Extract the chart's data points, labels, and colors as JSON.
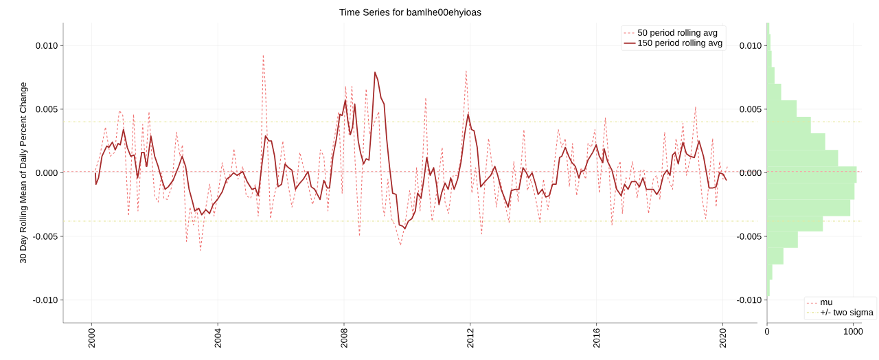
{
  "chart_data": [
    {
      "type": "line",
      "title": "Time Series for bamlhe00ehyioas",
      "ylabel": "30 Day Rolling Mean of Daily Percent Change",
      "xlim": [
        1999.1,
        2021.1
      ],
      "ylim": [
        -0.0118,
        0.0118
      ],
      "xticks": [
        2000,
        2004,
        2008,
        2012,
        2016,
        2020
      ],
      "yticks": [
        {
          "value": -0.01,
          "label": "-0.010"
        },
        {
          "value": -0.005,
          "label": "-0.005"
        },
        {
          "value": 0,
          "label": "0.000"
        },
        {
          "value": 0.005,
          "label": "0.005"
        },
        {
          "value": 0.01,
          "label": "0.010"
        }
      ],
      "grid": true,
      "legend": "top right",
      "series": [
        {
          "name": "50 period rolling avg",
          "color": "#f07070",
          "line_style": "dashed",
          "x": [
            2000.12,
            2000.26,
            2000.44,
            2000.59,
            2000.73,
            2000.88,
            2000.99,
            2001.06,
            2001.17,
            2001.24,
            2001.33,
            2001.4,
            2001.47,
            2001.53,
            2001.62,
            2001.71,
            2001.82,
            2001.93,
            2002.0,
            2002.11,
            2002.22,
            2002.29,
            2002.4,
            2002.54,
            2002.69,
            2002.8,
            2002.88,
            2003.01,
            2003.12,
            2003.23,
            2003.34,
            2003.45,
            2003.59,
            2003.74,
            2003.88,
            2004.03,
            2004.14,
            2004.28,
            2004.43,
            2004.51,
            2004.64,
            2004.79,
            2004.9,
            2005.04,
            2005.19,
            2005.28,
            2005.36,
            2005.44,
            2005.51,
            2005.59,
            2005.67,
            2005.77,
            2005.91,
            2006.06,
            2006.2,
            2006.35,
            2006.49,
            2006.6,
            2006.71,
            2006.86,
            2007.0,
            2007.15,
            2007.25,
            2007.36,
            2007.49,
            2007.6,
            2007.72,
            2007.83,
            2007.94,
            2008.05,
            2008.16,
            2008.25,
            2008.35,
            2008.49,
            2008.59,
            2008.7,
            2008.81,
            2008.99,
            2009.1,
            2009.21,
            2009.28,
            2009.39,
            2009.5,
            2009.61,
            2009.79,
            2009.93,
            2010.08,
            2010.19,
            2010.3,
            2010.41,
            2010.59,
            2010.67,
            2010.79,
            2010.89,
            2010.99,
            2011.11,
            2011.2,
            2011.31,
            2011.46,
            2011.6,
            2011.71,
            2011.87,
            2011.98,
            2012.05,
            2012.17,
            2012.25,
            2012.36,
            2012.47,
            2012.58,
            2012.7,
            2012.83,
            2012.94,
            2013.09,
            2013.23,
            2013.38,
            2013.52,
            2013.7,
            2013.81,
            2013.92,
            2014.07,
            2014.21,
            2014.32,
            2014.46,
            2014.61,
            2014.79,
            2014.9,
            2015.01,
            2015.14,
            2015.24,
            2015.37,
            2015.51,
            2015.66,
            2015.73,
            2015.84,
            2015.95,
            2016.09,
            2016.28,
            2016.38,
            2016.49,
            2016.6,
            2016.64,
            2016.75,
            2016.82,
            2016.93,
            2017.04,
            2017.14,
            2017.29,
            2017.4,
            2017.51,
            2017.65,
            2017.8,
            2017.91,
            2018.01,
            2018.16,
            2018.27,
            2018.41,
            2018.52,
            2018.63,
            2018.74,
            2018.85,
            2018.99,
            2019.14,
            2019.25,
            2019.36,
            2019.46,
            2019.57,
            2019.68,
            2019.79,
            2019.9,
            2020.01,
            2020.15
          ],
          "values": [
            0.0002,
            0.0013,
            0.0036,
            0.0013,
            0.0016,
            0.0049,
            0.0045,
            0.002,
            -0.0034,
            -0.0005,
            0.0046,
            0.0013,
            -0.003,
            -0.0005,
            0.0038,
            0.0005,
            0.0048,
            0.0004,
            -0.0018,
            -0.0023,
            0,
            -0.002,
            -0.0021,
            -0.0011,
            0.0032,
            0.0013,
            0.0022,
            -0.0054,
            -0.0027,
            -0.0041,
            -0.0027,
            -0.0061,
            -0.0032,
            -0.0009,
            -0.0034,
            -0.0013,
            0.0008,
            -0.0009,
            0.0002,
            0.0019,
            -0.0005,
            0.0005,
            -0.0018,
            -0.002,
            -0.0009,
            -0.0034,
            -0.0005,
            0.0093,
            0.0066,
            0.0013,
            -0.0036,
            -0.002,
            -0.0005,
            0.0025,
            -0.0005,
            -0.0027,
            -0.0011,
            0.0016,
            0.0005,
            -0.0009,
            -0.0025,
            -0.0013,
            0.0018,
            0.0013,
            -0.003,
            0.0013,
            null,
            0.0048,
            -0.0016,
            0.0068,
            0.003,
            0.0068,
            0.0009,
            -0.005,
            0.0009,
            0.0066,
            0.003,
            null,
            0.0048,
            -0.0023,
            -0.0034,
            -0.0005,
            -0.0036,
            -0.0041,
            -0.0057,
            -0.0041,
            -0.0014,
            -0.0034,
            0.0004,
            -0.003,
            0.0059,
            -0.0005,
            -0.0038,
            -0.0023,
            -0.0005,
            0.002,
            -0.0023,
            -0.0032,
            -0.0002,
            -0.0002,
            0.0013,
            0.008,
            0.0034,
            -0.0016,
            0.0004,
            -0.0018,
            -0.0048,
            -0.0005,
            0.0027,
            0.0004,
            -0.0027,
            -0.0005,
            -0.0023,
            -0.0039,
            0.0009,
            -0.0023,
            0.0034,
            -0.0014,
            -0.0005,
            -0.002,
            -0.0039,
            -0.0005,
            -0.0029,
            -0.0005,
            0.0034,
            0.002,
            0.0027,
            -0.0011,
            0.0023,
            -0.0018,
            0.0004,
            -0.0005,
            0.0023,
            0.002,
            0.0034,
            -0.0016,
            0.0043,
            0.0013,
            -0.0041,
            -0.0014,
            0.0002,
            0.0009,
            -0.0032,
            -0.0004,
            -0.0005,
            0.0009,
            -0.002,
            0.0002,
            0.0002,
            -0.0032,
            -0.0005,
            -0.0002,
            -0.0021,
            0.0032,
            -0.0005,
            -0.0013,
            0.0027,
            0.0011,
            0.0039,
            -0.0002,
            0.0013,
            0.0052,
            0.0005,
            -0.0023,
            -0.0036,
            -0.0005,
            0.0027,
            -0.0027,
            0.0009,
            -0.0005,
            0.0005
          ]
        },
        {
          "name": "150 period rolling avg",
          "color": "#a52a2a",
          "line_style": "solid",
          "x": [
            2000.12,
            2000.14,
            2000.22,
            2000.33,
            2000.48,
            2000.55,
            2000.66,
            2000.75,
            2000.84,
            2000.91,
            2001.01,
            2001.13,
            2001.24,
            2001.35,
            2001.46,
            2001.59,
            2001.66,
            2001.75,
            2001.88,
            2002.0,
            2002.11,
            2002.22,
            2002.33,
            2002.43,
            2002.58,
            2002.76,
            2002.87,
            2002.98,
            2003.09,
            2003.2,
            2003.27,
            2003.4,
            2003.49,
            2003.62,
            2003.74,
            2003.85,
            2003.99,
            2004.14,
            2004.28,
            2004.39,
            2004.5,
            2004.61,
            2004.79,
            2004.93,
            2005.08,
            2005.19,
            2005.28,
            2005.41,
            2005.51,
            2005.62,
            2005.7,
            2005.8,
            2005.91,
            2006.02,
            2006.13,
            2006.24,
            2006.35,
            2006.46,
            2006.57,
            2006.71,
            2006.86,
            2006.96,
            2007.07,
            2007.24,
            2007.36,
            2007.47,
            2007.54,
            2007.65,
            2007.76,
            2007.87,
            2007.94,
            2008.04,
            2008.12,
            2008.2,
            2008.27,
            2008.34,
            2008.45,
            2008.52,
            2008.62,
            2008.7,
            2008.79,
            2008.88,
            2008.98,
            2009.07,
            2009.17,
            2009.27,
            2009.35,
            2009.44,
            2009.54,
            2009.65,
            2009.75,
            2009.86,
            2009.93,
            2010.04,
            2010.15,
            2010.26,
            2010.33,
            2010.44,
            2010.53,
            2010.62,
            2010.73,
            2010.84,
            2010.93,
            2011.01,
            2011.09,
            2011.2,
            2011.3,
            2011.38,
            2011.49,
            2011.6,
            2011.71,
            2011.82,
            2011.93,
            2012.04,
            2012.12,
            2012.22,
            2012.33,
            2012.43,
            2012.54,
            2012.65,
            2012.78,
            2012.87,
            2012.98,
            2013.09,
            2013.2,
            2013.3,
            2013.43,
            2013.54,
            2013.67,
            2013.78,
            2013.85,
            2013.96,
            2014.07,
            2014.15,
            2014.28,
            2014.39,
            2014.5,
            2014.61,
            2014.72,
            2014.83,
            2014.9,
            2015.01,
            2015.12,
            2015.22,
            2015.33,
            2015.44,
            2015.51,
            2015.62,
            2015.73,
            2015.88,
            2015.99,
            2016.09,
            2016.2,
            2016.24,
            2016.35,
            2016.49,
            2016.64,
            2016.78,
            2016.89,
            2017.0,
            2017.11,
            2017.25,
            2017.36,
            2017.47,
            2017.58,
            2017.69,
            2017.8,
            2017.91,
            2018.01,
            2018.12,
            2018.23,
            2018.33,
            2018.41,
            2018.49,
            2018.59,
            2018.74,
            2018.85,
            2018.96,
            2019.1,
            2019.25,
            2019.39,
            2019.57,
            2019.68,
            2019.79,
            2019.9,
            2020.01,
            2020.12
          ],
          "values": [
            0,
            -0.0009,
            -0.0004,
            0.0013,
            0.0021,
            0.002,
            0.0024,
            0.0018,
            0.0023,
            0.0022,
            0.0034,
            0.002,
            0.0013,
            0.0014,
            -0.0004,
            0.0016,
            0.0016,
            0.0005,
            0.0029,
            0.0013,
            0.0005,
            -0.0005,
            -0.0013,
            -0.0011,
            -0.0006,
            0.0005,
            0.0013,
            0.0005,
            -0.0013,
            -0.0023,
            -0.003,
            -0.0028,
            -0.0033,
            -0.0029,
            -0.0032,
            -0.0025,
            -0.0021,
            -0.0015,
            -0.0005,
            -0.0003,
            0,
            -0.0002,
            0.0001,
            -0.0007,
            -0.0013,
            -0.0012,
            -0.0018,
            0.0009,
            0.0029,
            0.0025,
            0.0025,
            0.0013,
            -0.0011,
            -0.0009,
            0.0007,
            0.0004,
            0.0002,
            -0.0013,
            -0.0009,
            -0.0005,
            0.0001,
            -0.0011,
            -0.0013,
            -0.0021,
            -0.0006,
            -0.0012,
            -0.0012,
            0.0013,
            0.0027,
            0.0046,
            0.0045,
            0.0057,
            0.0041,
            0.003,
            0.0036,
            0.0054,
            0.0025,
            0.0016,
            0.0007,
            0.0011,
            0.001,
            0.0039,
            0.0079,
            0.0073,
            0.0059,
            0.0054,
            0.0027,
            0.0005,
            -0.0016,
            -0.0017,
            -0.0041,
            -0.0042,
            -0.0044,
            -0.0038,
            -0.0036,
            -0.003,
            -0.0016,
            -0.002,
            -0.0005,
            0.0012,
            -0.0002,
            0.0004,
            -0.0009,
            -0.0025,
            -0.0016,
            -0.0008,
            -0.0013,
            -0.0004,
            -0.0013,
            -0.0005,
            0.0009,
            0.003,
            0.0046,
            0.0034,
            0.0033,
            0.002,
            -0.0011,
            -0.0008,
            -0.0005,
            -0.0002,
            0.0005,
            -0.0002,
            -0.0013,
            -0.002,
            -0.0027,
            -0.0014,
            -0.0013,
            -0.0013,
            0.0004,
            0,
            -0.0004,
            0,
            -0.0009,
            -0.0017,
            -0.0013,
            -0.0019,
            -0.0018,
            -0.0009,
            -0.0009,
            0.0012,
            0.0013,
            0.002,
            0.0013,
            0.0008,
            0.0005,
            -0.0004,
            0.0001,
            0.0002,
            0.001,
            0.0016,
            0.0022,
            0.0013,
            0.0008,
            0.0019,
            0.0009,
            0.0002,
            -0.0013,
            -0.0018,
            -0.0009,
            -0.0013,
            -0.0007,
            -0.0007,
            -0.0011,
            -0.0004,
            -0.0013,
            -0.0013,
            -0.0013,
            -0.0017,
            -0.0013,
            -0.0002,
            0.0002,
            -0.0002,
            0.0014,
            0.0016,
            0.0007,
            0.0024,
            0.0015,
            0.0013,
            0.0012,
            0.0025,
            0.0013,
            -0.0012,
            -0.0012,
            -0.0011,
            0,
            -0.0001,
            -0.0006
          ]
        }
      ],
      "ref_lines": [
        {
          "axis": "y",
          "value": 0.0001,
          "color": "#f4a8a8",
          "line_style": "dashed"
        },
        {
          "axis": "y",
          "value": 0.004,
          "color": "#e6e69c",
          "line_style": "dashdot"
        },
        {
          "axis": "y",
          "value": -0.0038,
          "color": "#e6e69c",
          "line_style": "dashdot"
        }
      ]
    },
    {
      "type": "histogram",
      "orientation": "horizontal",
      "color": "#c4f2c0",
      "bins": [
        -0.0097,
        -0.0084,
        -0.0072,
        -0.0059,
        -0.0046,
        -0.0034,
        -0.0021,
        -0.0008,
        0.0005,
        0.0018,
        0.0031,
        0.0044,
        0.0057,
        0.007,
        0.0083,
        0.0096,
        0.0109,
        0.0118
      ],
      "values": [
        30,
        61,
        190,
        357,
        648,
        966,
        1015,
        1040,
        825,
        675,
        508,
        344,
        164,
        87,
        53,
        40,
        26
      ],
      "xlim": [
        0,
        1100
      ],
      "xticks": [
        0,
        1000
      ],
      "ylim": [
        -0.0118,
        0.0118
      ],
      "yticks": [
        {
          "value": -0.01,
          "label": "-0.010"
        },
        {
          "value": -0.005,
          "label": "-0.005"
        },
        {
          "value": 0,
          "label": "0.000"
        },
        {
          "value": 0.005,
          "label": "0.005"
        },
        {
          "value": 0.01,
          "label": "0.010"
        }
      ],
      "grid": true,
      "legend": "bottom right",
      "ref_lines": [
        {
          "axis": "y",
          "value": 0.0001,
          "label": "mu",
          "color": "#f4a8a8",
          "line_style": "dashed"
        },
        {
          "axis": "y",
          "value": 0.004,
          "label": "+/- two sigma",
          "color": "#e6e69c",
          "line_style": "dashdot"
        },
        {
          "axis": "y",
          "value": -0.0038,
          "color": "#e6e69c",
          "line_style": "dashdot"
        }
      ]
    }
  ]
}
